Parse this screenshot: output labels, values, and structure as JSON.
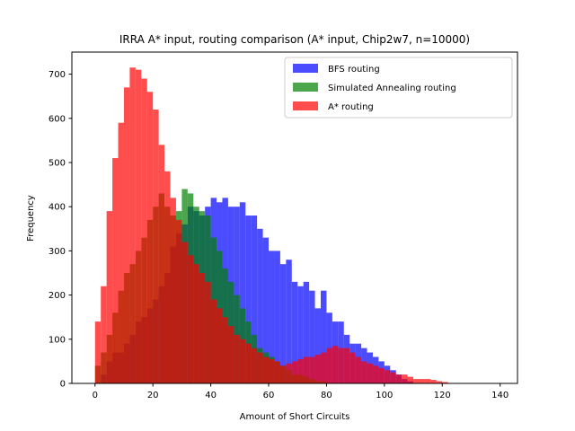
{
  "chart_data": {
    "type": "bar",
    "subtype": "overlapping-histogram",
    "title": "IRRA A* input, routing comparison (A* input, Chip2w7, n=10000)",
    "xlabel": "Amount of Short Circuits",
    "ylabel": "Frequency",
    "xlim": [
      -8,
      146
    ],
    "ylim": [
      0,
      750
    ],
    "xticks": [
      0,
      20,
      40,
      60,
      80,
      100,
      120,
      140
    ],
    "yticks": [
      0,
      100,
      200,
      300,
      400,
      500,
      600,
      700
    ],
    "bin_width": 2,
    "grid": false,
    "legend_position": "top-right",
    "series": [
      {
        "name": "BFS routing",
        "color": "#0000ff",
        "opacity": 0.7,
        "bin_start": 2,
        "values": [
          20,
          50,
          70,
          70,
          90,
          110,
          140,
          150,
          170,
          190,
          220,
          250,
          310,
          340,
          360,
          400,
          390,
          380,
          400,
          420,
          410,
          420,
          400,
          400,
          410,
          380,
          380,
          350,
          330,
          300,
          300,
          270,
          280,
          230,
          220,
          230,
          210,
          170,
          210,
          160,
          140,
          140,
          110,
          90,
          90,
          80,
          70,
          60,
          50,
          40,
          30,
          20,
          10,
          5
        ]
      },
      {
        "name": "Simulated Annealing routing",
        "color": "#008000",
        "opacity": 0.7,
        "bin_start": 0,
        "values": [
          40,
          70,
          110,
          160,
          210,
          250,
          270,
          300,
          330,
          370,
          400,
          430,
          400,
          380,
          390,
          440,
          430,
          400,
          390,
          380,
          330,
          300,
          260,
          230,
          200,
          170,
          140,
          110,
          80,
          70,
          60,
          50,
          40,
          30,
          20,
          20,
          15,
          10,
          5,
          5
        ]
      },
      {
        "name": "A* routing",
        "color": "#ff0000",
        "opacity": 0.7,
        "bin_start": 0,
        "values": [
          140,
          220,
          390,
          510,
          590,
          670,
          715,
          710,
          690,
          660,
          620,
          540,
          480,
          420,
          370,
          320,
          290,
          270,
          250,
          230,
          190,
          170,
          150,
          130,
          110,
          100,
          90,
          80,
          70,
          60,
          55,
          50,
          40,
          45,
          50,
          55,
          60,
          60,
          65,
          70,
          80,
          85,
          80,
          80,
          70,
          60,
          50,
          45,
          40,
          35,
          30,
          25,
          20,
          20,
          15,
          10,
          10,
          10,
          8,
          5,
          3
        ]
      }
    ]
  }
}
